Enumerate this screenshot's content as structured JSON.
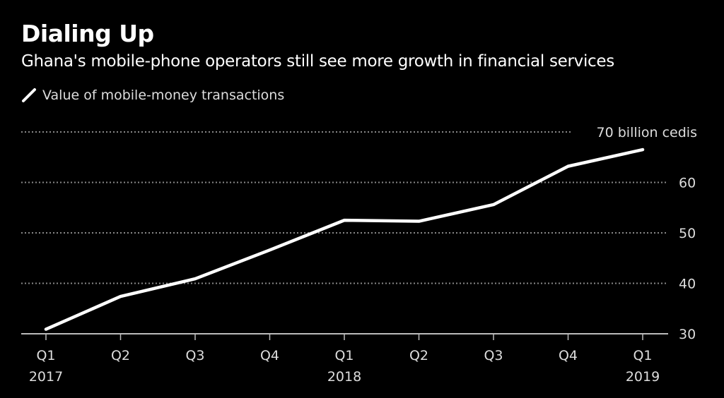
{
  "chart_data": {
    "type": "line",
    "title": "Dialing Up",
    "subtitle": "Ghana's mobile-phone operators still see more growth in financial services",
    "categories": [
      "Q1 2017",
      "Q2 2017",
      "Q3 2017",
      "Q4 2017",
      "Q1 2018",
      "Q2 2018",
      "Q3 2018",
      "Q4 2018",
      "Q1 2019"
    ],
    "x_tick_labels": [
      {
        "quarter": "Q1",
        "year": "2017"
      },
      {
        "quarter": "Q2",
        "year": ""
      },
      {
        "quarter": "Q3",
        "year": ""
      },
      {
        "quarter": "Q4",
        "year": ""
      },
      {
        "quarter": "Q1",
        "year": "2018"
      },
      {
        "quarter": "Q2",
        "year": ""
      },
      {
        "quarter": "Q3",
        "year": ""
      },
      {
        "quarter": "Q4",
        "year": ""
      },
      {
        "quarter": "Q1",
        "year": "2019"
      }
    ],
    "series": [
      {
        "name": "Value of mobile-money transactions",
        "color": "#ffffff",
        "values": [
          30.9,
          37.4,
          40.9,
          46.6,
          52.5,
          52.3,
          55.6,
          63.2,
          66.5
        ]
      }
    ],
    "ylim": [
      30,
      70
    ],
    "y_ticks": [
      30,
      40,
      50,
      60,
      70
    ],
    "y_tick_labels": [
      "30",
      "40",
      "50",
      "60",
      "70 billion cedis"
    ],
    "y_axis_position": "right",
    "grid": "horizontal dotted",
    "legend_placement": "top-left",
    "background": "#000000"
  }
}
